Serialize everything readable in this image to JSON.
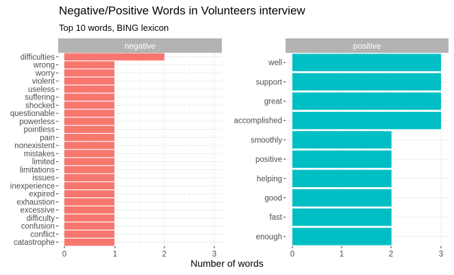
{
  "title": "Negative/Positive Words in Volunteers interview",
  "subtitle": "Top 10 words, BING lexicon",
  "xlabel": "Number of words",
  "colors": {
    "negative": "#F8766D",
    "positive": "#00BFC4",
    "strip": "#B3B3B3",
    "grid": "#EBEBEB",
    "text": "#4D4D4D"
  },
  "chart_data": [
    {
      "type": "bar",
      "orientation": "horizontal",
      "facet": "negative",
      "categories": [
        "difficulties",
        "wrong",
        "worry",
        "violent",
        "useless",
        "suffering",
        "shocked",
        "questionable",
        "powerless",
        "pointless",
        "pain",
        "nonexistent",
        "mistakes",
        "limited",
        "limitations",
        "issues",
        "inexperience",
        "expired",
        "exhaustion",
        "excessive",
        "difficulty",
        "confusion",
        "conflict",
        "catastrophe"
      ],
      "values": [
        2,
        1,
        1,
        1,
        1,
        1,
        1,
        1,
        1,
        1,
        1,
        1,
        1,
        1,
        1,
        1,
        1,
        1,
        1,
        1,
        1,
        1,
        1,
        1
      ],
      "xlim": [
        0,
        3
      ],
      "xticks": [
        "0",
        "1",
        "2",
        "3"
      ],
      "grid": true
    },
    {
      "type": "bar",
      "orientation": "horizontal",
      "facet": "positive",
      "categories": [
        "well",
        "support",
        "great",
        "accomplished",
        "smoothly",
        "positive",
        "helping",
        "good",
        "fast",
        "enough"
      ],
      "values": [
        3,
        3,
        3,
        3,
        2,
        2,
        2,
        2,
        2,
        2
      ],
      "xlim": [
        0,
        3
      ],
      "xticks": [
        "0",
        "1",
        "2",
        "3"
      ],
      "grid": true
    }
  ]
}
